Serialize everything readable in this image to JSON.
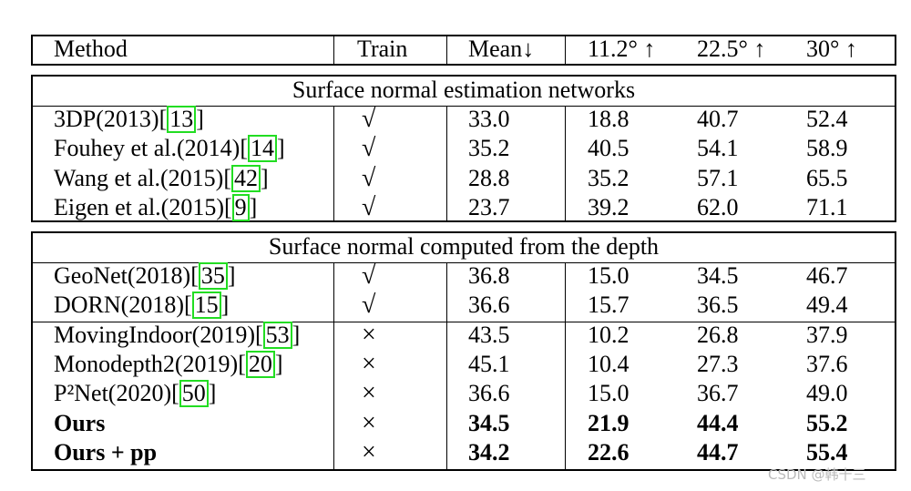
{
  "header": {
    "method": "Method",
    "train": "Train",
    "mean": "Mean↓",
    "t1": "11.2° ↑",
    "t2": "22.5° ↑",
    "t3": "30° ↑"
  },
  "sections": [
    {
      "caption": "Surface normal estimation networks",
      "rows": [
        {
          "name": "3DP(2013)",
          "ref": "13",
          "train": "√",
          "vals": [
            "33.0",
            "18.8",
            "40.7",
            "52.4"
          ],
          "bold": false
        },
        {
          "name": "Fouhey et al.(2014)",
          "ref": "14",
          "train": "√",
          "vals": [
            "35.2",
            "40.5",
            "54.1",
            "58.9"
          ],
          "bold": false
        },
        {
          "name": "Wang et al.(2015)",
          "ref": "42",
          "train": "√",
          "vals": [
            "28.8",
            "35.2",
            "57.1",
            "65.5"
          ],
          "bold": false
        },
        {
          "name": "Eigen et al.(2015)",
          "ref": "9",
          "train": "√",
          "vals": [
            "23.7",
            "39.2",
            "62.0",
            "71.1"
          ],
          "bold": false
        }
      ]
    },
    {
      "caption": "Surface normal computed from the depth",
      "rows": [
        {
          "name": "GeoNet(2018)",
          "ref": "35",
          "train": "√",
          "vals": [
            "36.8",
            "15.0",
            "34.5",
            "46.7"
          ],
          "bold": false
        },
        {
          "name": "DORN(2018)",
          "ref": "15",
          "train": "√",
          "vals": [
            "36.6",
            "15.7",
            "36.5",
            "49.4"
          ],
          "bold": false
        },
        {
          "name": "MovingIndoor(2019)",
          "ref": "53",
          "train": "×",
          "vals": [
            "43.5",
            "10.2",
            "26.8",
            "37.9"
          ],
          "bold": false
        },
        {
          "name": "Monodepth2(2019)",
          "ref": "20",
          "train": "×",
          "vals": [
            "45.1",
            "10.4",
            "27.3",
            "37.6"
          ],
          "bold": false
        },
        {
          "name": "P²Net(2020)",
          "ref": "50",
          "train": "×",
          "vals": [
            "36.6",
            "15.0",
            "36.7",
            "49.0"
          ],
          "bold": false
        },
        {
          "name": "Ours",
          "ref": "",
          "train": "×",
          "vals": [
            "34.5",
            "21.9",
            "44.4",
            "55.2"
          ],
          "bold": true
        },
        {
          "name": "Ours + pp",
          "ref": "",
          "train": "×",
          "vals": [
            "34.2",
            "22.6",
            "44.7",
            "55.4"
          ],
          "bold": true
        }
      ]
    }
  ],
  "watermark": "CSDN @韩十三"
}
